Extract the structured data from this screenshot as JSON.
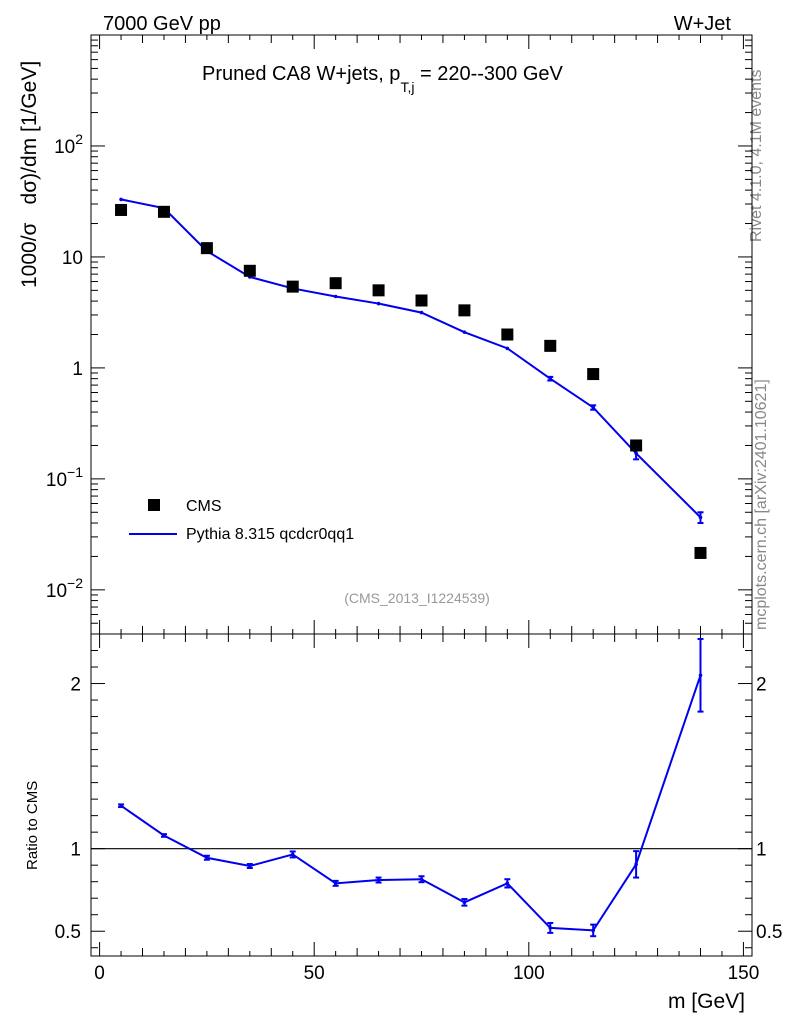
{
  "header": {
    "left": "7000 GeV pp",
    "right": "W+Jet"
  },
  "side_labels": {
    "rivet": "Rivet 4.1.0,  4.1M events",
    "mcplots": "mcplots.cern.ch [arXiv:2401.10621]"
  },
  "colors": {
    "data": "#000000",
    "mc": "#0000ee",
    "analysis_label": "#999999",
    "side_label": "#888888"
  },
  "chart_data": [
    {
      "type": "scatter",
      "panel": "main",
      "title": "Pruned CA8 W+jets, p_{T,j} = 220--300 GeV",
      "title_parts": {
        "pre": "Pruned CA8 W+jets, p",
        "sub": "T,j",
        "post": " = 220--300 GeV"
      },
      "ylabel": "1000/σ   dσ)/dm [1/GeV]",
      "ylabel_parts": {
        "left": "1000/σ",
        "right": "dσ)/dm [1/GeV]"
      },
      "yscale": "log",
      "xlim": [
        -2,
        152
      ],
      "ylim": [
        0.004,
        1000
      ],
      "y_ticks": [
        {
          "value": 100,
          "base": "10",
          "exp": "2"
        },
        {
          "value": 10,
          "base": "10",
          "exp": ""
        },
        {
          "value": 1,
          "base": "1",
          "exp": ""
        },
        {
          "value": 0.1,
          "base": "10",
          "exp": "−1"
        },
        {
          "value": 0.01,
          "base": "10",
          "exp": "−2"
        }
      ],
      "analysis_label": "(CMS_2013_I1224539)",
      "legend_position": "bottom-left",
      "series": [
        {
          "name": "CMS",
          "marker": "square",
          "x": [
            5,
            15,
            25,
            35,
            45,
            55,
            65,
            75,
            85,
            95,
            105,
            115,
            125,
            140
          ],
          "y": [
            26.5,
            25.5,
            12.0,
            7.5,
            5.4,
            5.8,
            5.0,
            4.05,
            3.3,
            2.0,
            1.58,
            0.88,
            0.2,
            0.0215
          ]
        },
        {
          "name": "Pythia 8.315 qcdcr0qq1",
          "marker": "line",
          "x": [
            5,
            15,
            25,
            35,
            45,
            55,
            65,
            75,
            85,
            95,
            105,
            115,
            125,
            140
          ],
          "y": [
            33,
            27.5,
            11.3,
            6.6,
            5.2,
            4.4,
            3.8,
            3.15,
            2.1,
            1.5,
            0.8,
            0.44,
            0.17,
            0.045
          ],
          "yerr": [
            0,
            0,
            0,
            0,
            0,
            0,
            0,
            0,
            0,
            0,
            0.03,
            0.02,
            0.02,
            0.005
          ]
        }
      ]
    },
    {
      "type": "line",
      "panel": "ratio",
      "ylabel": "Ratio to CMS",
      "xlabel": "m [GeV]",
      "xlim": [
        -2,
        152
      ],
      "ylim": [
        0.35,
        2.3
      ],
      "x_ticks": [
        "0",
        "50",
        "100",
        "150"
      ],
      "x_tick_values": [
        0,
        50,
        100,
        150
      ],
      "y_ticks": [
        "0.5",
        "1",
        "2"
      ],
      "y_tick_values": [
        0.5,
        1,
        2
      ],
      "reference_line": 1,
      "series": [
        {
          "name": "Pythia 8.315 qcdcr0qq1",
          "x": [
            5,
            15,
            25,
            35,
            45,
            55,
            65,
            75,
            85,
            95,
            105,
            115,
            125,
            140
          ],
          "y": [
            1.26,
            1.08,
            0.945,
            0.895,
            0.965,
            0.79,
            0.81,
            0.815,
            0.675,
            0.79,
            0.52,
            0.505,
            0.905,
            2.05
          ],
          "yerr": [
            0.008,
            0.008,
            0.012,
            0.012,
            0.018,
            0.015,
            0.015,
            0.018,
            0.02,
            0.025,
            0.03,
            0.035,
            0.08,
            0.22
          ]
        }
      ]
    }
  ]
}
